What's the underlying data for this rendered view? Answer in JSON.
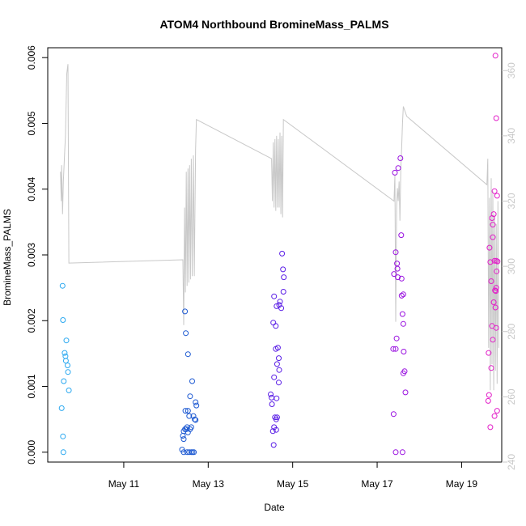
{
  "chart_data": {
    "type": "scatter",
    "title": "ATOM4 Northbound BromineMass_PALMS",
    "xlabel": "Date",
    "ylabel": "BromineMass_PALMS",
    "x_range": [
      9.2,
      19.95
    ],
    "ylim": [
      -0.00015,
      0.00615
    ],
    "x_ticks": [
      {
        "value": 11,
        "label": "May 11"
      },
      {
        "value": 13,
        "label": "May 13"
      },
      {
        "value": 15,
        "label": "May 15"
      },
      {
        "value": 17,
        "label": "May 17"
      },
      {
        "value": 19,
        "label": "May 19"
      }
    ],
    "y_ticks": [
      {
        "value": 0,
        "label": "0.000"
      },
      {
        "value": 0.001,
        "label": "0.001"
      },
      {
        "value": 0.002,
        "label": "0.002"
      },
      {
        "value": 0.003,
        "label": "0.003"
      },
      {
        "value": 0.004,
        "label": "0.004"
      },
      {
        "value": 0.005,
        "label": "0.005"
      },
      {
        "value": 0.006,
        "label": "0.006"
      }
    ],
    "y2_range": [
      240,
      367
    ],
    "y2_ticks": [
      {
        "value": 240,
        "label": "240"
      },
      {
        "value": 260,
        "label": "260"
      },
      {
        "value": 280,
        "label": "280"
      },
      {
        "value": 300,
        "label": "300"
      },
      {
        "value": 320,
        "label": "320"
      },
      {
        "value": 340,
        "label": "340"
      },
      {
        "value": 360,
        "label": "360"
      }
    ],
    "axis_colors": {
      "left": "#000000",
      "right": "#c8c8c8",
      "line": "#c8c8c8"
    },
    "grid": false,
    "series": [
      {
        "color": "#2aa8f0",
        "points": [
          [
            9.55,
            0.00253
          ],
          [
            9.56,
            0.00201
          ],
          [
            9.6,
            0.00151
          ],
          [
            9.62,
            0.00146
          ],
          [
            9.63,
            0.00139
          ],
          [
            9.64,
            0.0017
          ],
          [
            9.67,
            0.00132
          ],
          [
            9.68,
            0.00122
          ],
          [
            9.7,
            0.00094
          ],
          [
            9.58,
            0.00108
          ],
          [
            9.53,
            0.00067
          ],
          [
            9.56,
            0.00024
          ],
          [
            9.57,
            0.0
          ]
        ]
      },
      {
        "color": "#1e5ad2",
        "points": [
          [
            12.45,
            0.00214
          ],
          [
            12.47,
            0.00181
          ],
          [
            12.52,
            0.00149
          ],
          [
            12.62,
            0.00108
          ],
          [
            12.57,
            0.00085
          ],
          [
            12.7,
            0.00076
          ],
          [
            12.72,
            0.00071
          ],
          [
            12.46,
            0.00063
          ],
          [
            12.52,
            0.00063
          ],
          [
            12.55,
            0.00055
          ],
          [
            12.65,
            0.00055
          ],
          [
            12.68,
            0.0005
          ],
          [
            12.7,
            0.00049
          ],
          [
            12.5,
            0.00038
          ],
          [
            12.57,
            0.00035
          ],
          [
            12.6,
            0.00038
          ],
          [
            12.42,
            0.00032
          ],
          [
            12.45,
            0.00035
          ],
          [
            12.48,
            0.00035
          ],
          [
            12.52,
            0.0003
          ],
          [
            12.4,
            0.00025
          ],
          [
            12.42,
            0.0002
          ],
          [
            12.38,
            4e-05
          ],
          [
            12.42,
            0.0
          ],
          [
            12.5,
            0.0
          ],
          [
            12.55,
            0.0
          ],
          [
            12.6,
            0.0
          ],
          [
            12.63,
            0.0
          ],
          [
            12.66,
            0.0
          ]
        ]
      },
      {
        "color": "#5a1ee6",
        "points": [
          [
            14.75,
            0.00302
          ],
          [
            14.77,
            0.00278
          ],
          [
            14.79,
            0.00266
          ],
          [
            14.78,
            0.00244
          ],
          [
            14.7,
            0.00229
          ],
          [
            14.73,
            0.00219
          ],
          [
            14.62,
            0.00222
          ],
          [
            14.56,
            0.00237
          ],
          [
            14.68,
            0.00224
          ],
          [
            14.54,
            0.00197
          ],
          [
            14.6,
            0.00192
          ],
          [
            14.6,
            0.00157
          ],
          [
            14.65,
            0.00159
          ],
          [
            14.67,
            0.00143
          ],
          [
            14.63,
            0.00134
          ],
          [
            14.68,
            0.00125
          ],
          [
            14.56,
            0.00114
          ],
          [
            14.67,
            0.00106
          ],
          [
            14.48,
            0.00088
          ],
          [
            14.5,
            0.00083
          ],
          [
            14.62,
            0.00082
          ],
          [
            14.51,
            0.00073
          ],
          [
            14.58,
            0.00053
          ],
          [
            14.61,
            0.0005
          ],
          [
            14.63,
            0.00053
          ],
          [
            14.56,
            0.00038
          ],
          [
            14.61,
            0.00034
          ],
          [
            14.53,
            0.00032
          ],
          [
            14.55,
            0.00011
          ]
        ]
      },
      {
        "color": "#9a12e0",
        "points": [
          [
            17.55,
            0.00447
          ],
          [
            17.5,
            0.00432
          ],
          [
            17.42,
            0.00425
          ],
          [
            17.57,
            0.0033
          ],
          [
            17.44,
            0.00304
          ],
          [
            17.47,
            0.00287
          ],
          [
            17.48,
            0.00279
          ],
          [
            17.4,
            0.00271
          ],
          [
            17.49,
            0.00266
          ],
          [
            17.58,
            0.00264
          ],
          [
            17.62,
            0.0024
          ],
          [
            17.58,
            0.00238
          ],
          [
            17.6,
            0.0021
          ],
          [
            17.62,
            0.00195
          ],
          [
            17.46,
            0.00173
          ],
          [
            17.38,
            0.00157
          ],
          [
            17.44,
            0.00157
          ],
          [
            17.63,
            0.00153
          ],
          [
            17.65,
            0.00123
          ],
          [
            17.62,
            0.0012
          ],
          [
            17.67,
            0.00091
          ],
          [
            17.39,
            0.00058
          ],
          [
            17.44,
            0.0
          ],
          [
            17.6,
            0.0
          ]
        ]
      },
      {
        "color": "#e21ec8",
        "points": [
          [
            19.8,
            0.00603
          ],
          [
            19.82,
            0.00508
          ],
          [
            19.78,
            0.00397
          ],
          [
            19.84,
            0.0039
          ],
          [
            19.76,
            0.00362
          ],
          [
            19.72,
            0.00356
          ],
          [
            19.74,
            0.00346
          ],
          [
            19.74,
            0.00327
          ],
          [
            19.66,
            0.00311
          ],
          [
            19.68,
            0.00289
          ],
          [
            19.78,
            0.00291
          ],
          [
            19.82,
            0.00291
          ],
          [
            19.85,
            0.0029
          ],
          [
            19.83,
            0.00275
          ],
          [
            19.7,
            0.0026
          ],
          [
            19.82,
            0.0025
          ],
          [
            19.79,
            0.00246
          ],
          [
            19.81,
            0.00245
          ],
          [
            19.76,
            0.00228
          ],
          [
            19.8,
            0.0022
          ],
          [
            19.72,
            0.00192
          ],
          [
            19.82,
            0.00189
          ],
          [
            19.74,
            0.00171
          ],
          [
            19.64,
            0.00151
          ],
          [
            19.7,
            0.00128
          ],
          [
            19.65,
            0.00087
          ],
          [
            19.63,
            0.00078
          ],
          [
            19.84,
            0.00063
          ],
          [
            19.78,
            0.00055
          ],
          [
            19.68,
            0.00038
          ]
        ]
      }
    ],
    "altitude_line": [
      [
        9.5,
        329
      ],
      [
        9.52,
        320
      ],
      [
        9.53,
        331
      ],
      [
        9.55,
        316
      ],
      [
        9.57,
        326
      ],
      [
        9.6,
        335
      ],
      [
        9.62,
        340
      ],
      [
        9.65,
        359
      ],
      [
        9.68,
        362
      ],
      [
        9.7,
        301
      ],
      [
        12.4,
        302
      ],
      [
        12.42,
        282
      ],
      [
        12.44,
        318
      ],
      [
        12.46,
        292
      ],
      [
        12.48,
        329
      ],
      [
        12.5,
        294
      ],
      [
        12.52,
        330
      ],
      [
        12.54,
        295
      ],
      [
        12.56,
        331
      ],
      [
        12.58,
        296
      ],
      [
        12.6,
        333
      ],
      [
        12.62,
        297
      ],
      [
        12.65,
        334
      ],
      [
        12.67,
        297
      ],
      [
        12.7,
        336
      ],
      [
        12.72,
        345
      ],
      [
        14.5,
        333
      ],
      [
        14.52,
        320
      ],
      [
        14.54,
        338
      ],
      [
        14.56,
        318
      ],
      [
        14.58,
        339
      ],
      [
        14.6,
        317
      ],
      [
        14.62,
        340
      ],
      [
        14.64,
        318
      ],
      [
        14.66,
        339
      ],
      [
        14.68,
        318
      ],
      [
        14.7,
        341
      ],
      [
        14.72,
        316
      ],
      [
        14.74,
        340
      ],
      [
        14.76,
        315
      ],
      [
        14.78,
        345
      ],
      [
        17.4,
        320
      ],
      [
        17.42,
        328
      ],
      [
        17.44,
        283
      ],
      [
        17.46,
        318
      ],
      [
        17.48,
        324
      ],
      [
        17.5,
        320
      ],
      [
        17.52,
        326
      ],
      [
        17.54,
        314
      ],
      [
        17.56,
        330
      ],
      [
        17.58,
        336
      ],
      [
        17.6,
        344
      ],
      [
        17.62,
        349
      ],
      [
        17.7,
        346
      ],
      [
        19.6,
        325
      ],
      [
        19.62,
        333
      ],
      [
        19.64,
        275
      ],
      [
        19.66,
        321
      ],
      [
        19.68,
        262
      ],
      [
        19.7,
        327
      ],
      [
        19.72,
        270
      ],
      [
        19.74,
        323
      ],
      [
        19.76,
        262
      ],
      [
        19.78,
        316
      ],
      [
        19.8,
        268
      ],
      [
        19.82,
        313
      ],
      [
        19.84,
        264
      ],
      [
        19.86,
        320
      ],
      [
        19.88,
        275
      ]
    ]
  }
}
